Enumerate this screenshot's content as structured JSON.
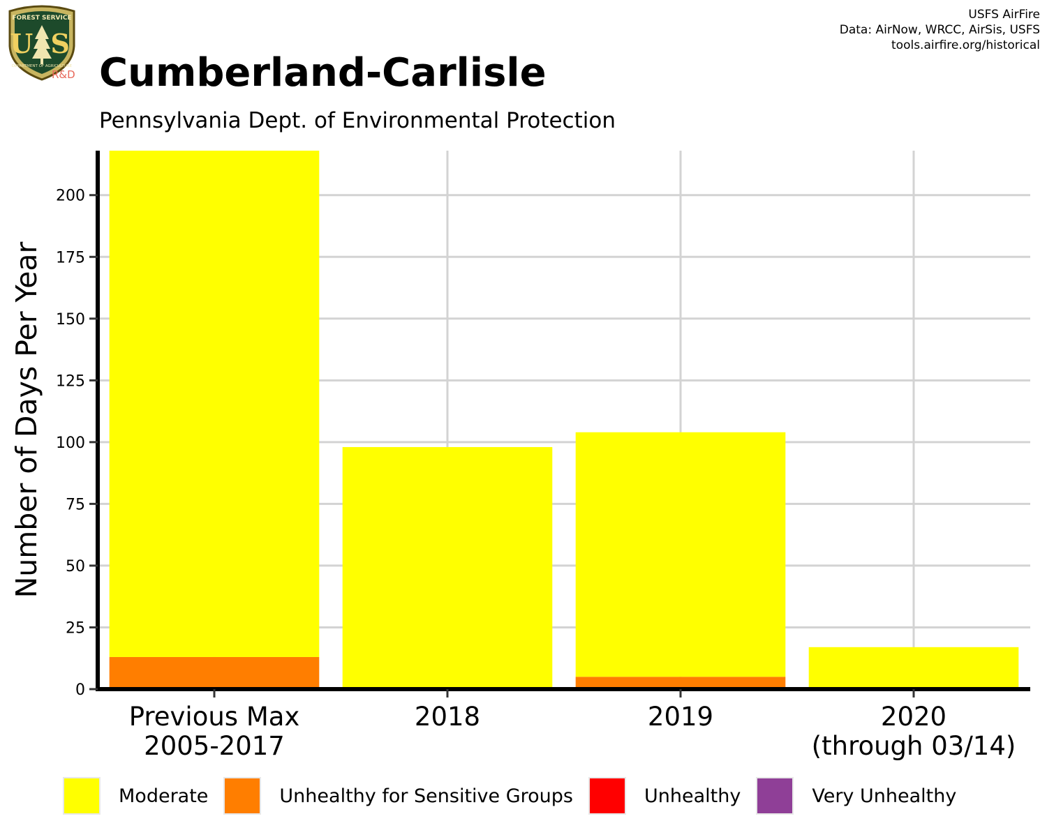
{
  "header": {
    "title": "Cumberland-Carlisle",
    "subtitle": "Pennsylvania Dept. of Environmental Protection",
    "credits": [
      "USFS AirFire",
      "Data: AirNow, WRCC, AirSis, USFS",
      "tools.airfire.org/historical"
    ]
  },
  "logo": {
    "top_text": "FOREST SERVICE",
    "letters": "U S",
    "bottom_text": "DEPARTMENT OF AGRICULTURE",
    "tag": "R&D"
  },
  "chart_data": {
    "type": "bar",
    "stacked": true,
    "categories": [
      [
        "Previous Max",
        "2005-2017"
      ],
      [
        "2018"
      ],
      [
        "2019"
      ],
      [
        "2020",
        "(through 03/14)"
      ]
    ],
    "series": [
      {
        "name": "Moderate",
        "color": "#ffff00",
        "values": [
          205,
          98,
          99,
          17
        ]
      },
      {
        "name": "Unhealthy for Sensitive Groups",
        "color": "#ff7e00",
        "values": [
          13,
          0,
          5,
          0
        ]
      },
      {
        "name": "Unhealthy",
        "color": "#ff0000",
        "values": [
          0,
          0,
          0,
          0
        ]
      },
      {
        "name": "Very Unhealthy",
        "color": "#8f3f97",
        "values": [
          0,
          0,
          0,
          0
        ]
      }
    ],
    "stack_order_bottom_to_top": [
      "Unhealthy for Sensitive Groups",
      "Moderate"
    ],
    "ylabel": "Number of Days Per Year",
    "xlabel": "",
    "ylim": [
      0,
      218
    ],
    "yticks": [
      0,
      25,
      50,
      75,
      100,
      125,
      150,
      175,
      200
    ],
    "grid": true,
    "legend_position": "bottom"
  }
}
